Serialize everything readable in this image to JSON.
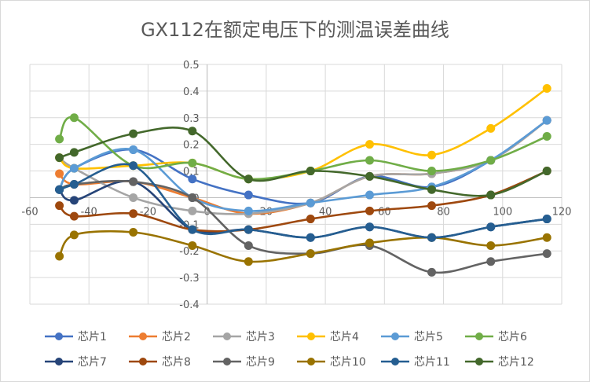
{
  "chart_data": {
    "type": "line",
    "title": "GX112在额定电压下的测温误差曲线",
    "xlim": [
      -60,
      120
    ],
    "ylim": [
      -0.4,
      0.5
    ],
    "x_ticks": [
      -60,
      -40,
      -20,
      0,
      20,
      40,
      60,
      80,
      100,
      120
    ],
    "y_ticks": [
      -0.4,
      -0.3,
      -0.2,
      -0.1,
      0,
      0.1,
      0.2,
      0.3,
      0.4,
      0.5
    ],
    "x_tick_labels": [
      "-60",
      "-40",
      "-20",
      "0",
      "20",
      "40",
      "60",
      "80",
      "100",
      "120"
    ],
    "y_tick_labels": [
      "-0.4",
      "-0.3",
      "-0.2",
      "-0.1",
      "0",
      "0.1",
      "0.2",
      "0.3",
      "0.4",
      "0.5"
    ],
    "grid": true,
    "legend": "bottom",
    "series": [
      {
        "name": "芯片1",
        "color": "#4472C4",
        "points": [
          [
            -50,
            0.03
          ],
          [
            -45,
            0.11
          ],
          [
            -25,
            0.18
          ],
          [
            -5,
            0.07
          ],
          [
            14,
            0.01
          ],
          [
            35,
            -0.02
          ],
          [
            55,
            0.08
          ],
          [
            76,
            0.04
          ],
          [
            96,
            0.14
          ],
          [
            115,
            0.29
          ]
        ]
      },
      {
        "name": "芯片2",
        "color": "#ED7D31",
        "points": [
          [
            -50,
            0.09
          ],
          [
            -45,
            0.05
          ],
          [
            -25,
            0.06
          ],
          [
            -5,
            0.0
          ],
          [
            14,
            -0.06
          ],
          [
            35,
            -0.02
          ],
          [
            55,
            0.08
          ],
          [
            76,
            0.09
          ],
          [
            96,
            0.14
          ],
          [
            115,
            0.29
          ]
        ]
      },
      {
        "name": "芯片3",
        "color": "#A5A5A5",
        "points": [
          [
            -50,
            0.15
          ],
          [
            -45,
            0.11
          ],
          [
            -25,
            0.0
          ],
          [
            -5,
            -0.05
          ],
          [
            14,
            -0.06
          ],
          [
            35,
            -0.02
          ],
          [
            55,
            0.08
          ],
          [
            76,
            0.09
          ],
          [
            96,
            0.14
          ],
          [
            115,
            0.29
          ]
        ]
      },
      {
        "name": "芯片4",
        "color": "#FFC000",
        "points": [
          [
            -50,
            0.15
          ],
          [
            -45,
            0.11
          ],
          [
            -25,
            0.12
          ],
          [
            -5,
            0.13
          ],
          [
            14,
            0.07
          ],
          [
            35,
            0.1
          ],
          [
            55,
            0.2
          ],
          [
            76,
            0.16
          ],
          [
            96,
            0.26
          ],
          [
            115,
            0.41
          ]
        ]
      },
      {
        "name": "芯片5",
        "color": "#5B9BD5",
        "points": [
          [
            -50,
            0.03
          ],
          [
            -45,
            0.11
          ],
          [
            -25,
            0.18
          ],
          [
            -5,
            0.0
          ],
          [
            14,
            -0.05
          ],
          [
            35,
            -0.02
          ],
          [
            55,
            0.01
          ],
          [
            76,
            0.04
          ],
          [
            96,
            0.14
          ],
          [
            115,
            0.29
          ]
        ]
      },
      {
        "name": "芯片6",
        "color": "#70AD47",
        "points": [
          [
            -50,
            0.22
          ],
          [
            -45,
            0.3
          ],
          [
            -25,
            0.12
          ],
          [
            -5,
            0.13
          ],
          [
            14,
            0.07
          ],
          [
            35,
            0.1
          ],
          [
            55,
            0.14
          ],
          [
            76,
            0.1
          ],
          [
            96,
            0.14
          ],
          [
            115,
            0.23
          ]
        ]
      },
      {
        "name": "芯片7",
        "color": "#264478",
        "points": [
          [
            -50,
            0.03
          ],
          [
            -45,
            -0.01
          ],
          [
            -25,
            0.06
          ],
          [
            -5,
            -0.12
          ],
          [
            14,
            -0.12
          ],
          [
            35,
            -0.15
          ],
          [
            55,
            -0.11
          ],
          [
            76,
            -0.15
          ],
          [
            96,
            -0.11
          ],
          [
            115,
            -0.08
          ]
        ]
      },
      {
        "name": "芯片8",
        "color": "#9E480E",
        "points": [
          [
            -50,
            -0.03
          ],
          [
            -45,
            -0.07
          ],
          [
            -25,
            -0.06
          ],
          [
            -5,
            -0.12
          ],
          [
            14,
            -0.12
          ],
          [
            35,
            -0.08
          ],
          [
            55,
            -0.05
          ],
          [
            76,
            -0.03
          ],
          [
            96,
            0.01
          ],
          [
            115,
            0.1
          ]
        ]
      },
      {
        "name": "芯片9",
        "color": "#636363",
        "points": [
          [
            -50,
            0.03
          ],
          [
            -45,
            0.05
          ],
          [
            -25,
            0.06
          ],
          [
            -5,
            0.0
          ],
          [
            14,
            -0.18
          ],
          [
            35,
            -0.21
          ],
          [
            55,
            -0.18
          ],
          [
            76,
            -0.28
          ],
          [
            96,
            -0.24
          ],
          [
            115,
            -0.21
          ]
        ]
      },
      {
        "name": "芯片10",
        "color": "#997300",
        "points": [
          [
            -50,
            -0.22
          ],
          [
            -45,
            -0.14
          ],
          [
            -25,
            -0.13
          ],
          [
            -5,
            -0.18
          ],
          [
            14,
            -0.24
          ],
          [
            35,
            -0.21
          ],
          [
            55,
            -0.17
          ],
          [
            76,
            -0.15
          ],
          [
            96,
            -0.18
          ],
          [
            115,
            -0.15
          ]
        ]
      },
      {
        "name": "芯片11",
        "color": "#255E91",
        "points": [
          [
            -50,
            0.03
          ],
          [
            -45,
            0.05
          ],
          [
            -25,
            0.12
          ],
          [
            -5,
            -0.12
          ],
          [
            14,
            -0.12
          ],
          [
            35,
            -0.15
          ],
          [
            55,
            -0.11
          ],
          [
            76,
            -0.15
          ],
          [
            96,
            -0.11
          ],
          [
            115,
            -0.08
          ]
        ]
      },
      {
        "name": "芯片12",
        "color": "#43682B",
        "points": [
          [
            -50,
            0.15
          ],
          [
            -45,
            0.17
          ],
          [
            -25,
            0.24
          ],
          [
            -5,
            0.25
          ],
          [
            14,
            0.07
          ],
          [
            35,
            0.1
          ],
          [
            55,
            0.08
          ],
          [
            76,
            0.03
          ],
          [
            96,
            0.01
          ],
          [
            115,
            0.1
          ]
        ]
      }
    ]
  }
}
